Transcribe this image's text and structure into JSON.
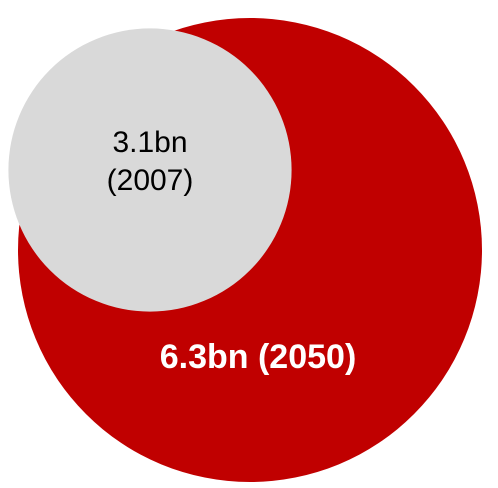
{
  "chart_data": {
    "type": "bubble",
    "series": [
      {
        "name": "2050",
        "value": 6.3,
        "unit": "bn",
        "year": "2050",
        "label": "6.3bn (2050)",
        "color": "#c00000",
        "text_color": "#ffffff"
      },
      {
        "name": "2007",
        "value": 3.1,
        "unit": "bn",
        "year": "2007",
        "label_lines": [
          "3.1bn",
          "(2007)"
        ],
        "color": "#d9d9d9",
        "text_color": "#000000"
      }
    ],
    "area_proportional": true
  }
}
